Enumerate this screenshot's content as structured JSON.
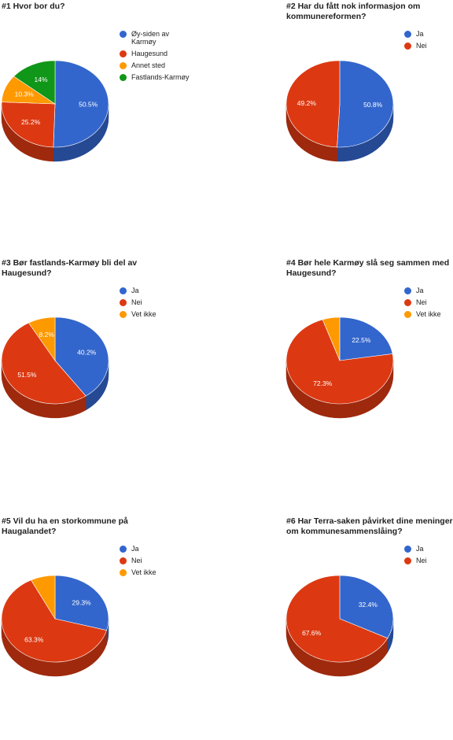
{
  "chart_data": [
    {
      "type": "pie",
      "title": "#1 Hvor bor du?",
      "categories": [
        "Øy-siden av Karmøy",
        "Haugesund",
        "Annet sted",
        "Fastlands-Karmøy"
      ],
      "values": [
        50.5,
        25.2,
        10.3,
        14
      ],
      "value_labels": [
        "50.5%",
        "25.2%",
        "10.3%",
        "14%"
      ],
      "colors": [
        "#3366cc",
        "#dc3912",
        "#ff9900",
        "#109618"
      ],
      "legend_position": "right",
      "style": "3d"
    },
    {
      "type": "pie",
      "title": "#2 Har du fått nok informasjon om kommunereformen?",
      "categories": [
        "Ja",
        "Nei"
      ],
      "values": [
        50.8,
        49.2
      ],
      "value_labels": [
        "50.8%",
        "49.2%"
      ],
      "colors": [
        "#3366cc",
        "#dc3912"
      ],
      "legend_position": "right",
      "style": "3d"
    },
    {
      "type": "pie",
      "title": "#3 Bør fastlands-Karmøy bli del av Haugesund?",
      "categories": [
        "Ja",
        "Nei",
        "Vet ikke"
      ],
      "values": [
        40.2,
        51.5,
        8.2
      ],
      "value_labels": [
        "40.2%",
        "51.5%",
        "8.2%"
      ],
      "colors": [
        "#3366cc",
        "#dc3912",
        "#ff9900"
      ],
      "legend_position": "right",
      "style": "3d"
    },
    {
      "type": "pie",
      "title": "#4 Bør hele Karmøy slå seg sammen med Haugesund?",
      "categories": [
        "Ja",
        "Nei",
        "Vet ikke"
      ],
      "values": [
        22.5,
        72.3,
        5.2
      ],
      "value_labels": [
        "22.5%",
        "72.3%",
        ""
      ],
      "colors": [
        "#3366cc",
        "#dc3912",
        "#ff9900"
      ],
      "legend_position": "right",
      "style": "3d"
    },
    {
      "type": "pie",
      "title": "#5 Vil du ha en storkommune på Haugalandet?",
      "categories": [
        "Ja",
        "Nei",
        "Vet ikke"
      ],
      "values": [
        29.3,
        63.3,
        7.4
      ],
      "value_labels": [
        "29.3%",
        "63.3%",
        ""
      ],
      "colors": [
        "#3366cc",
        "#dc3912",
        "#ff9900"
      ],
      "legend_position": "right",
      "style": "3d"
    },
    {
      "type": "pie",
      "title": "#6 Har Terra-saken påvirket dine meninger om kommunesammenslåing?",
      "categories": [
        "Ja",
        "Nei"
      ],
      "values": [
        32.4,
        67.6
      ],
      "value_labels": [
        "32.4%",
        "67.6%"
      ],
      "colors": [
        "#3366cc",
        "#dc3912"
      ],
      "legend_position": "right",
      "style": "3d"
    }
  ]
}
